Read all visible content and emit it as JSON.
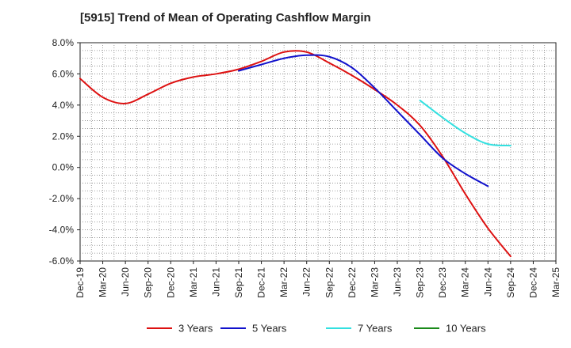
{
  "chart_data": {
    "type": "line",
    "title": "[5915]  Trend of Mean of Operating Cashflow Margin",
    "xlabel": "",
    "ylabel": "",
    "categories": [
      "Dec-19",
      "Mar-20",
      "Jun-20",
      "Sep-20",
      "Dec-20",
      "Mar-21",
      "Jun-21",
      "Sep-21",
      "Dec-21",
      "Mar-22",
      "Jun-22",
      "Sep-22",
      "Dec-22",
      "Mar-23",
      "Jun-23",
      "Sep-23",
      "Dec-23",
      "Mar-24",
      "Jun-24",
      "Sep-24",
      "Dec-24",
      "Mar-25"
    ],
    "ylim": [
      -6,
      8
    ],
    "y_ticks": [
      8,
      6,
      4,
      2,
      0,
      -2,
      -4,
      -6
    ],
    "y_tick_labels": [
      "8.0%",
      "6.0%",
      "4.0%",
      "2.0%",
      "0.0%",
      "-2.0%",
      "-4.0%",
      "-6.0%"
    ],
    "grid": true,
    "legend_position": "bottom",
    "series": [
      {
        "name": "3 Years",
        "color": "#dd1111",
        "values": [
          5.7,
          4.5,
          4.1,
          4.7,
          5.4,
          5.8,
          6.0,
          6.3,
          6.8,
          7.4,
          7.4,
          6.7,
          5.9,
          5.0,
          4.0,
          2.7,
          0.7,
          -1.7,
          -3.9,
          -5.7,
          null,
          null
        ]
      },
      {
        "name": "5 Years",
        "color": "#1111cc",
        "values": [
          null,
          null,
          null,
          null,
          null,
          null,
          null,
          6.2,
          6.6,
          7.0,
          7.2,
          7.1,
          6.4,
          5.1,
          3.6,
          2.1,
          0.6,
          -0.4,
          -1.2,
          null,
          null,
          null
        ]
      },
      {
        "name": "7 Years",
        "color": "#33e0e0",
        "values": [
          null,
          null,
          null,
          null,
          null,
          null,
          null,
          null,
          null,
          null,
          null,
          null,
          null,
          null,
          null,
          4.3,
          3.2,
          2.2,
          1.5,
          1.4,
          null,
          null
        ]
      },
      {
        "name": "10 Years",
        "color": "#1a8a1a",
        "values": [
          null,
          null,
          null,
          null,
          null,
          null,
          null,
          null,
          null,
          null,
          null,
          null,
          null,
          null,
          null,
          null,
          null,
          null,
          null,
          null,
          null,
          null
        ]
      }
    ]
  }
}
